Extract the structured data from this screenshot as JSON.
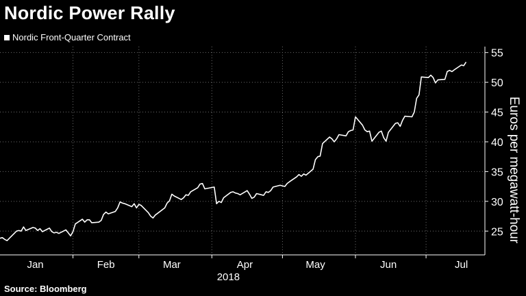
{
  "title": "Nordic Power Rally",
  "source": "Source: Bloomberg",
  "colors": {
    "background": "#000000",
    "line": "#ffffff",
    "grid": "#6e6e6e",
    "text": "#ffffff"
  },
  "chart_data": {
    "type": "line",
    "title": "Nordic Power Rally",
    "ylabel": "Euros per megawatt-hour",
    "xlabel": "2018",
    "ylim": [
      21,
      56
    ],
    "yticks": [
      25,
      30,
      35,
      40,
      45,
      50,
      55
    ],
    "y_axis_side": "right",
    "grid": "dotted",
    "legend_position": "top-left",
    "xlim": [
      "2018-01-01",
      "2018-07-26"
    ],
    "month_labels": [
      {
        "label": "Jan",
        "date": "2018-01-16"
      },
      {
        "label": "Feb",
        "date": "2018-02-15"
      },
      {
        "label": "Mar",
        "date": "2018-03-15"
      },
      {
        "label": "Apr",
        "date": "2018-04-15"
      },
      {
        "label": "May",
        "date": "2018-05-15"
      },
      {
        "label": "Jun",
        "date": "2018-06-15"
      },
      {
        "label": "Jul",
        "date": "2018-07-16"
      }
    ],
    "month_grid_dates": [
      "2018-02-01",
      "2018-03-01",
      "2018-04-01",
      "2018-05-01",
      "2018-06-01",
      "2018-07-01"
    ],
    "year_label": "2018",
    "series": [
      {
        "name": "Nordic Front-Quarter Contract",
        "color": "#ffffff",
        "points": [
          [
            "2018-01-01",
            23.8
          ],
          [
            "2018-01-02",
            23.9
          ],
          [
            "2018-01-03",
            23.6
          ],
          [
            "2018-01-04",
            23.4
          ],
          [
            "2018-01-05",
            23.8
          ],
          [
            "2018-01-08",
            25.0
          ],
          [
            "2018-01-09",
            25.1
          ],
          [
            "2018-01-10",
            25.0
          ],
          [
            "2018-01-11",
            25.7
          ],
          [
            "2018-01-12",
            25.1
          ],
          [
            "2018-01-15",
            25.6
          ],
          [
            "2018-01-16",
            25.5
          ],
          [
            "2018-01-17",
            25.1
          ],
          [
            "2018-01-18",
            25.4
          ],
          [
            "2018-01-19",
            24.9
          ],
          [
            "2018-01-22",
            25.5
          ],
          [
            "2018-01-23",
            24.9
          ],
          [
            "2018-01-24",
            24.7
          ],
          [
            "2018-01-25",
            24.8
          ],
          [
            "2018-01-26",
            24.6
          ],
          [
            "2018-01-29",
            25.2
          ],
          [
            "2018-01-30",
            24.7
          ],
          [
            "2018-01-31",
            24.2
          ],
          [
            "2018-02-01",
            24.9
          ],
          [
            "2018-02-02",
            26.2
          ],
          [
            "2018-02-05",
            27.0
          ],
          [
            "2018-02-06",
            26.5
          ],
          [
            "2018-02-07",
            26.9
          ],
          [
            "2018-02-08",
            26.9
          ],
          [
            "2018-02-09",
            26.4
          ],
          [
            "2018-02-12",
            26.5
          ],
          [
            "2018-02-13",
            26.8
          ],
          [
            "2018-02-14",
            27.8
          ],
          [
            "2018-02-15",
            28.2
          ],
          [
            "2018-02-16",
            27.9
          ],
          [
            "2018-02-19",
            28.3
          ],
          [
            "2018-02-20",
            28.9
          ],
          [
            "2018-02-21",
            29.9
          ],
          [
            "2018-02-22",
            29.7
          ],
          [
            "2018-02-23",
            29.6
          ],
          [
            "2018-02-26",
            29.1
          ],
          [
            "2018-02-27",
            29.6
          ],
          [
            "2018-02-28",
            28.9
          ],
          [
            "2018-03-01",
            29.5
          ],
          [
            "2018-03-02",
            29.3
          ],
          [
            "2018-03-05",
            28.1
          ],
          [
            "2018-03-06",
            27.5
          ],
          [
            "2018-03-07",
            27.2
          ],
          [
            "2018-03-08",
            27.7
          ],
          [
            "2018-03-09",
            28.0
          ],
          [
            "2018-03-12",
            28.9
          ],
          [
            "2018-03-13",
            29.7
          ],
          [
            "2018-03-14",
            30.1
          ],
          [
            "2018-03-15",
            31.2
          ],
          [
            "2018-03-16",
            30.9
          ],
          [
            "2018-03-19",
            30.3
          ],
          [
            "2018-03-20",
            30.6
          ],
          [
            "2018-03-21",
            31.1
          ],
          [
            "2018-03-22",
            31.0
          ],
          [
            "2018-03-23",
            31.6
          ],
          [
            "2018-03-26",
            32.3
          ],
          [
            "2018-03-27",
            32.9
          ],
          [
            "2018-03-28",
            33.0
          ],
          [
            "2018-03-29",
            32.1
          ],
          [
            "2018-04-02",
            32.4
          ],
          [
            "2018-04-03",
            29.6
          ],
          [
            "2018-04-04",
            30.0
          ],
          [
            "2018-04-05",
            29.8
          ],
          [
            "2018-04-06",
            30.6
          ],
          [
            "2018-04-09",
            31.5
          ],
          [
            "2018-04-10",
            31.6
          ],
          [
            "2018-04-11",
            31.4
          ],
          [
            "2018-04-12",
            31.3
          ],
          [
            "2018-04-13",
            31.1
          ],
          [
            "2018-04-16",
            31.8
          ],
          [
            "2018-04-17",
            31.2
          ],
          [
            "2018-04-18",
            30.5
          ],
          [
            "2018-04-19",
            30.7
          ],
          [
            "2018-04-20",
            31.3
          ],
          [
            "2018-04-23",
            31.0
          ],
          [
            "2018-04-24",
            31.6
          ],
          [
            "2018-04-25",
            31.5
          ],
          [
            "2018-04-26",
            31.8
          ],
          [
            "2018-04-27",
            32.4
          ],
          [
            "2018-04-30",
            32.7
          ],
          [
            "2018-05-02",
            32.5
          ],
          [
            "2018-05-03",
            33.0
          ],
          [
            "2018-05-04",
            33.3
          ],
          [
            "2018-05-07",
            34.1
          ],
          [
            "2018-05-08",
            34.5
          ],
          [
            "2018-05-09",
            34.2
          ],
          [
            "2018-05-10",
            34.6
          ],
          [
            "2018-05-11",
            34.4
          ],
          [
            "2018-05-14",
            35.4
          ],
          [
            "2018-05-15",
            37.0
          ],
          [
            "2018-05-16",
            37.5
          ],
          [
            "2018-05-17",
            37.6
          ],
          [
            "2018-05-18",
            39.7
          ],
          [
            "2018-05-21",
            40.8
          ],
          [
            "2018-05-22",
            40.5
          ],
          [
            "2018-05-23",
            40.0
          ],
          [
            "2018-05-24",
            40.5
          ],
          [
            "2018-05-25",
            41.2
          ],
          [
            "2018-05-28",
            41.0
          ],
          [
            "2018-05-29",
            41.7
          ],
          [
            "2018-05-30",
            41.9
          ],
          [
            "2018-05-31",
            42.0
          ],
          [
            "2018-06-01",
            44.2
          ],
          [
            "2018-06-04",
            42.8
          ],
          [
            "2018-06-05",
            42.0
          ],
          [
            "2018-06-06",
            41.7
          ],
          [
            "2018-06-07",
            41.8
          ],
          [
            "2018-06-08",
            40.1
          ],
          [
            "2018-06-11",
            41.6
          ],
          [
            "2018-06-12",
            41.8
          ],
          [
            "2018-06-13",
            40.7
          ],
          [
            "2018-06-14",
            40.1
          ],
          [
            "2018-06-15",
            41.6
          ],
          [
            "2018-06-18",
            43.1
          ],
          [
            "2018-06-19",
            43.2
          ],
          [
            "2018-06-20",
            42.6
          ],
          [
            "2018-06-21",
            43.6
          ],
          [
            "2018-06-22",
            44.3
          ],
          [
            "2018-06-25",
            44.2
          ],
          [
            "2018-06-26",
            45.0
          ],
          [
            "2018-06-27",
            47.3
          ],
          [
            "2018-06-28",
            47.9
          ],
          [
            "2018-06-29",
            50.9
          ],
          [
            "2018-07-02",
            50.8
          ],
          [
            "2018-07-03",
            51.2
          ],
          [
            "2018-07-04",
            50.8
          ],
          [
            "2018-07-05",
            49.9
          ],
          [
            "2018-07-06",
            50.4
          ],
          [
            "2018-07-09",
            50.5
          ],
          [
            "2018-07-10",
            51.8
          ],
          [
            "2018-07-11",
            52.0
          ],
          [
            "2018-07-12",
            51.8
          ],
          [
            "2018-07-13",
            52.1
          ],
          [
            "2018-07-16",
            52.9
          ],
          [
            "2018-07-17",
            52.8
          ],
          [
            "2018-07-18",
            53.4
          ]
        ]
      }
    ]
  }
}
